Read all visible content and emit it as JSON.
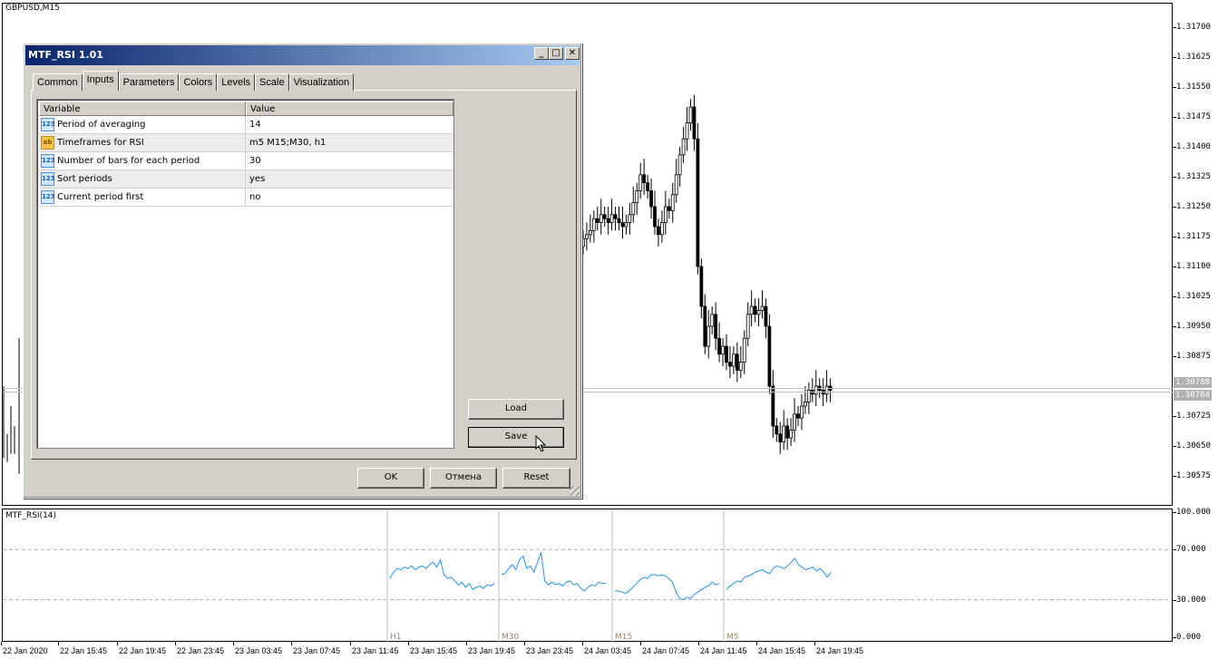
{
  "chart": {
    "symbol": "GBPUSD,M15",
    "price_labels": [
      "1.31700",
      "1.31625",
      "1.31550",
      "1.31475",
      "1.31400",
      "1.31325",
      "1.31250",
      "1.31175",
      "1.31100",
      "1.31025",
      "1.30950",
      "1.30875",
      "1.30725",
      "1.30650",
      "1.30575"
    ],
    "bid_label": "1.30788",
    "ask_label": "1.30784",
    "time_labels": [
      "22 Jan 2020",
      "22 Jan 15:45",
      "22 Jan 19:45",
      "22 Jan 23:45",
      "23 Jan 03:45",
      "23 Jan 07:45",
      "23 Jan 11:45",
      "23 Jan 15:45",
      "23 Jan 19:45",
      "23 Jan 23:45",
      "24 Jan 03:45",
      "24 Jan 07:45",
      "24 Jan 11:45",
      "24 Jan 15:45",
      "24 Jan 19:45"
    ],
    "closes": [
      1.3117,
      1.3118,
      1.3119,
      1.3122,
      1.3121,
      1.3123,
      1.3122,
      1.3121,
      1.3123,
      1.3122,
      1.3121,
      1.312,
      1.3121,
      1.3123,
      1.3126,
      1.3129,
      1.3133,
      1.3131,
      1.3129,
      1.3125,
      1.312,
      1.3118,
      1.3121,
      1.3125,
      1.3124,
      1.3128,
      1.3133,
      1.3138,
      1.3142,
      1.3146,
      1.315,
      1.3142,
      1.311,
      1.31,
      1.309,
      1.3095,
      1.3098,
      1.3092,
      1.3088,
      1.309,
      1.3086,
      1.3085,
      1.3088,
      1.3084,
      1.3086,
      1.3092,
      1.3098,
      1.31,
      1.3098,
      1.3099,
      1.31,
      1.3095,
      1.308,
      1.307,
      1.3068,
      1.3066,
      1.307,
      1.3067,
      1.3069,
      1.3073,
      1.3072,
      1.3075,
      1.3076,
      1.3079,
      1.3078,
      1.308,
      1.3079,
      1.3078,
      1.308,
      1.3079
    ]
  },
  "dialog": {
    "title": "MTF_RSI 1.01",
    "tabs": [
      "Common",
      "Inputs",
      "Parameters",
      "Colors",
      "Levels",
      "Scale",
      "Visualization"
    ],
    "active_tab": "Inputs",
    "columns": [
      "Variable",
      "Value"
    ],
    "rows": [
      {
        "icon": "123",
        "variable": "Period of averaging",
        "value": "14"
      },
      {
        "icon": "ab",
        "variable": "Timeframes for RSI",
        "value": "m5 M15;M30, h1"
      },
      {
        "icon": "123",
        "variable": "Number of bars for each period",
        "value": "30"
      },
      {
        "icon": "123",
        "variable": "Sort periods",
        "value": "yes"
      },
      {
        "icon": "123",
        "variable": "Current period first",
        "value": "no"
      }
    ],
    "load": "Load",
    "save": "Save",
    "ok": "OK",
    "cancel": "Отмена",
    "reset": "Reset"
  },
  "indicator": {
    "title": "MTF_RSI(14)",
    "levels": [
      "100.000",
      "70.000",
      "30.000",
      "0.000"
    ],
    "line_color": "#1e90ff",
    "segments": [
      {
        "label": "H1",
        "values": [
          47,
          52,
          55,
          54,
          56,
          55,
          57,
          54,
          56,
          57,
          55,
          58,
          60,
          56,
          62,
          50,
          47,
          48,
          45,
          42,
          44,
          40,
          43,
          38,
          40,
          41,
          39,
          42,
          41,
          43
        ]
      },
      {
        "label": "M30",
        "values": [
          50,
          51,
          55,
          58,
          54,
          62,
          65,
          55,
          57,
          52,
          60,
          68,
          45,
          42,
          44,
          42,
          43,
          41,
          44,
          45,
          42,
          43,
          39,
          37,
          40,
          42,
          41,
          44,
          43,
          43
        ]
      },
      {
        "label": "M15",
        "values": [
          37,
          37,
          36,
          35,
          37,
          40,
          43,
          46,
          48,
          47,
          50,
          50,
          49,
          50,
          49,
          47,
          44,
          36,
          31,
          30,
          32,
          31,
          34,
          36,
          38,
          40,
          41,
          44,
          42,
          43
        ]
      },
      {
        "label": "M5",
        "values": [
          38,
          41,
          43,
          45,
          44,
          48,
          49,
          50,
          52,
          53,
          54,
          52,
          51,
          55,
          57,
          56,
          55,
          57,
          60,
          63,
          58,
          56,
          54,
          55,
          56,
          53,
          55,
          52,
          48,
          52
        ]
      }
    ]
  }
}
